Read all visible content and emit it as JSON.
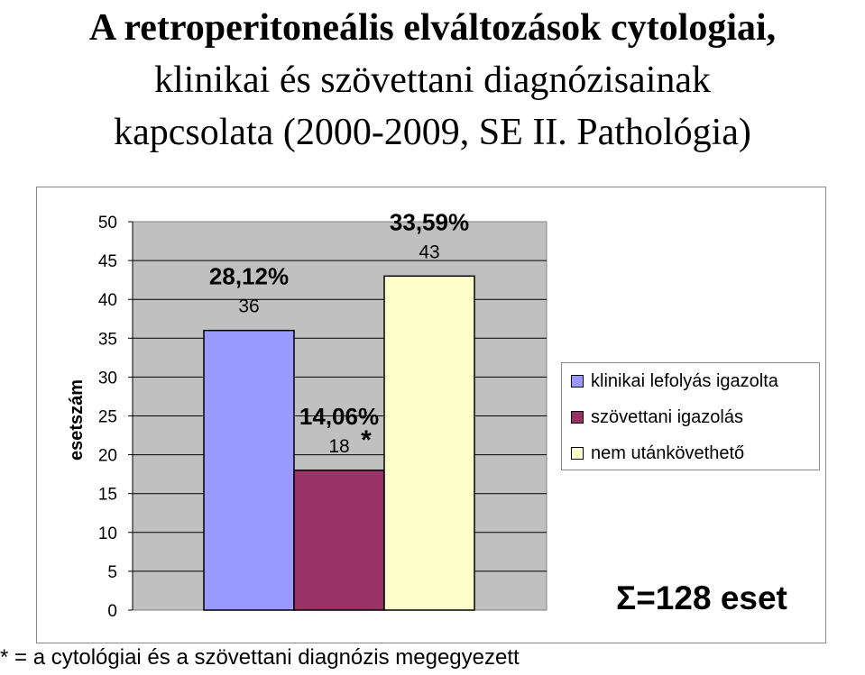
{
  "title": {
    "line1": "A retroperitoneális elváltozások cytologiai,",
    "line2": "klinikai és szövettani diagnózisainak",
    "line3": "kapcsolata (2000-2009, SE II. Pathológia)"
  },
  "chart_data": {
    "type": "bar",
    "ylabel": "esetszám",
    "ylim": [
      0,
      50
    ],
    "yticks": [
      "0",
      "5",
      "10",
      "15",
      "20",
      "25",
      "30",
      "35",
      "40",
      "45",
      "50"
    ],
    "grid": true,
    "legend_position": "right",
    "series": [
      {
        "name": "klinikai lefolyás igazolta",
        "value": 36,
        "value_label": "36",
        "percent_label": "28,12%",
        "marker": "",
        "color": "#9999ff"
      },
      {
        "name": "szövettani igazolás",
        "value": 18,
        "value_label": "18",
        "percent_label": "14,06%",
        "marker": "*",
        "color": "#993366"
      },
      {
        "name": "nem utánkövethető",
        "value": 43,
        "value_label": "43",
        "percent_label": "33,59%",
        "marker": "",
        "color": "#ffffcc"
      }
    ]
  },
  "summary": "Σ=128 eset",
  "footnote": "* = a cytológiai és a szövettani diagnózis megegyezett"
}
